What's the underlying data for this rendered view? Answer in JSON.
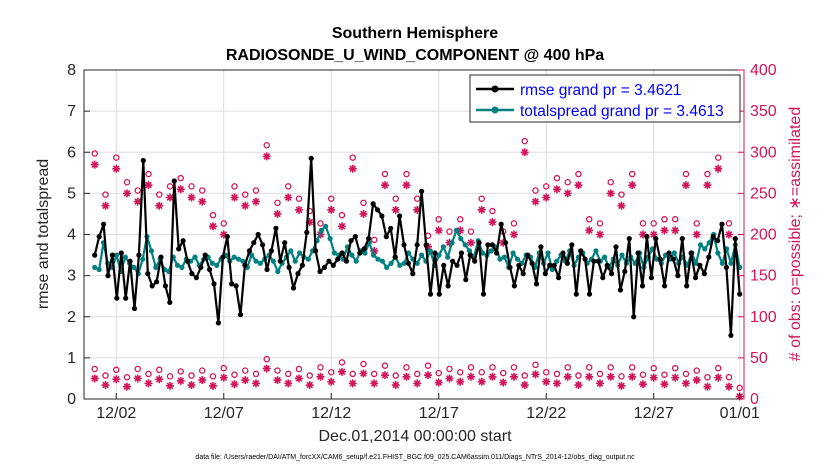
{
  "chart_data": {
    "type": "line",
    "title": "Southern Hemisphere",
    "subtitle": "RADIOSONDE_U_WIND_COMPONENT @ 400 hPa",
    "xlabel": "Dec.01,2014 00:00:00 start",
    "ylabel_left": "rmse and totalspread",
    "ylabel_right": "# of obs: o=possible; ∗=assimilated",
    "footnote": "data file: /Users/raeder/DAI/ATM_forcXX/CAM6_setup/f.e21.FHIST_BGC.f09_025.CAM6assim.011/Diags_NTrS_2014-12/obs_diag_output.nc",
    "xlim": [
      0.5,
      31.2
    ],
    "ylim_left": [
      0,
      8
    ],
    "ylim_right": [
      0,
      400
    ],
    "x_ticks": [
      {
        "value": 2,
        "label": "12/02"
      },
      {
        "value": 7,
        "label": "12/07"
      },
      {
        "value": 12,
        "label": "12/12"
      },
      {
        "value": 17,
        "label": "12/17"
      },
      {
        "value": 22,
        "label": "12/22"
      },
      {
        "value": 27,
        "label": "12/27"
      },
      {
        "value": 31,
        "label": "01/01"
      }
    ],
    "y_ticks_left": [
      "0",
      "1",
      "2",
      "3",
      "4",
      "5",
      "6",
      "7",
      "8"
    ],
    "y_ticks_right": [
      "0",
      "50",
      "100",
      "150",
      "200",
      "250",
      "300",
      "350",
      "400"
    ],
    "grid": true,
    "legend_position": "top-right",
    "legend": [
      "rmse grand pr = 3.4621",
      "totalspread grand pr = 3.4613"
    ],
    "series": [
      {
        "name": "rmse",
        "axis": "left",
        "values": [
          3.5,
          3.95,
          4.25,
          3.0,
          3.5,
          2.45,
          3.55,
          2.45,
          3.35,
          2.2,
          3.5,
          5.8,
          3.05,
          2.75,
          2.85,
          3.45,
          2.75,
          2.35,
          5.3,
          3.65,
          3.85,
          3.35,
          3.05,
          2.95,
          3.2,
          3.5,
          3.15,
          2.8,
          1.85,
          3.45,
          3.95,
          2.8,
          2.75,
          2.05,
          3.25,
          3.6,
          3.8,
          4.0,
          3.75,
          3.15,
          3.6,
          4.15,
          3.35,
          3.8,
          3.2,
          2.7,
          3.05,
          3.25,
          4.05,
          5.85,
          3.6,
          3.1,
          3.2,
          3.35,
          3.25,
          3.4,
          3.55,
          3.35,
          3.85,
          3.95,
          3.55,
          3.65,
          3.9,
          4.75,
          4.6,
          4.45,
          3.95,
          4.15,
          3.45,
          4.45,
          3.75,
          3.3,
          3.05,
          3.75,
          5.05,
          3.75,
          2.55,
          3.55,
          2.55,
          3.25,
          2.75,
          3.35,
          3.25,
          3.55,
          2.9,
          3.5,
          3.35,
          3.8,
          2.55,
          3.75,
          3.75,
          3.55,
          4.25,
          3.8,
          3.2,
          2.75,
          3.25,
          3.05,
          3.5,
          3.3,
          2.8,
          3.7,
          3.05,
          3.25,
          3.25,
          2.95,
          3.55,
          3.3,
          3.75,
          2.55,
          3.6,
          3.4,
          2.55,
          3.35,
          3.35,
          2.95,
          3.25,
          3.05,
          3.7,
          2.65,
          3.1,
          3.9,
          2.0,
          3.55,
          2.75,
          3.95,
          2.95,
          3.9,
          3.4,
          2.75,
          3.55,
          3.4,
          3.0,
          3.9,
          2.75,
          3.55,
          2.95,
          3.25,
          3.05,
          3.45,
          3.95,
          3.85,
          4.25,
          3.2,
          1.55,
          3.9,
          2.55
        ]
      },
      {
        "name": "totalspread",
        "axis": "left",
        "values": [
          3.2,
          3.15,
          3.8,
          3.3,
          3.2,
          3.5,
          3.1,
          3.45,
          3.3,
          3.2,
          3.05,
          3.4,
          3.95,
          3.6,
          3.2,
          3.4,
          3.15,
          3.1,
          3.45,
          3.25,
          3.2,
          3.4,
          3.35,
          3.45,
          3.25,
          3.4,
          3.45,
          3.3,
          3.25,
          3.4,
          3.5,
          3.35,
          3.45,
          3.4,
          3.35,
          3.2,
          3.5,
          3.35,
          3.3,
          3.4,
          3.5,
          3.35,
          3.1,
          3.3,
          3.45,
          3.6,
          3.35,
          3.55,
          3.45,
          3.4,
          3.6,
          3.85,
          4.1,
          4.2,
          3.9,
          3.55,
          3.5,
          3.4,
          3.7,
          3.5,
          3.35,
          3.6,
          3.55,
          3.8,
          3.5,
          3.4,
          3.35,
          3.2,
          3.3,
          3.45,
          3.25,
          3.3,
          3.55,
          3.4,
          3.3,
          3.5,
          3.35,
          3.6,
          3.25,
          3.5,
          3.7,
          3.45,
          3.8,
          4.1,
          3.9,
          3.75,
          3.6,
          3.45,
          3.85,
          3.55,
          3.5,
          3.6,
          3.7,
          3.4,
          3.45,
          3.2,
          3.55,
          3.4,
          3.3,
          3.5,
          3.45,
          3.2,
          3.55,
          3.3,
          3.55,
          3.15,
          3.35,
          3.5,
          3.35,
          3.6,
          3.25,
          3.45,
          3.55,
          3.3,
          3.4,
          3.6,
          3.35,
          3.45,
          3.2,
          3.4,
          3.25,
          3.5,
          3.3,
          3.45,
          3.3,
          3.55,
          3.2,
          3.45,
          3.65,
          3.4,
          3.3,
          3.5,
          3.4,
          3.55,
          3.3,
          3.45,
          3.25,
          3.55,
          3.3,
          3.75,
          3.65,
          3.8,
          4.0,
          3.55,
          3.3,
          3.65,
          3.3,
          3.75,
          3.2
        ]
      }
    ],
    "obs_possible": [
      {
        "x": 1.0,
        "v": 290
      },
      {
        "x": 1.0,
        "v": 28
      },
      {
        "x": 1.5,
        "v": 240
      },
      {
        "x": 1.5,
        "v": 20
      },
      {
        "x": 2.0,
        "v": 285
      },
      {
        "x": 2.0,
        "v": 27
      },
      {
        "x": 2.5,
        "v": 255
      },
      {
        "x": 2.5,
        "v": 18
      },
      {
        "x": 3.0,
        "v": 245
      },
      {
        "x": 3.0,
        "v": 28
      },
      {
        "x": 3.5,
        "v": 265
      },
      {
        "x": 3.5,
        "v": 22
      },
      {
        "x": 4.0,
        "v": 240
      },
      {
        "x": 4.0,
        "v": 27
      },
      {
        "x": 4.5,
        "v": 250
      },
      {
        "x": 4.5,
        "v": 19
      },
      {
        "x": 5.0,
        "v": 260
      },
      {
        "x": 5.0,
        "v": 25
      },
      {
        "x": 5.5,
        "v": 250
      },
      {
        "x": 5.5,
        "v": 20
      },
      {
        "x": 6.0,
        "v": 245
      },
      {
        "x": 6.0,
        "v": 26
      },
      {
        "x": 6.5,
        "v": 215
      },
      {
        "x": 6.5,
        "v": 19
      },
      {
        "x": 7.0,
        "v": 205
      },
      {
        "x": 7.0,
        "v": 29
      },
      {
        "x": 7.5,
        "v": 250
      },
      {
        "x": 7.5,
        "v": 21
      },
      {
        "x": 8.0,
        "v": 240
      },
      {
        "x": 8.0,
        "v": 26
      },
      {
        "x": 8.5,
        "v": 245
      },
      {
        "x": 8.5,
        "v": 22
      },
      {
        "x": 9.0,
        "v": 300
      },
      {
        "x": 9.0,
        "v": 40
      },
      {
        "x": 9.5,
        "v": 230
      },
      {
        "x": 9.5,
        "v": 26
      },
      {
        "x": 10.0,
        "v": 250
      },
      {
        "x": 10.0,
        "v": 22
      },
      {
        "x": 10.5,
        "v": 235
      },
      {
        "x": 10.5,
        "v": 28
      },
      {
        "x": 11.0,
        "v": 220
      },
      {
        "x": 11.0,
        "v": 20
      },
      {
        "x": 11.5,
        "v": 205
      },
      {
        "x": 11.5,
        "v": 30
      },
      {
        "x": 12.0,
        "v": 235
      },
      {
        "x": 12.0,
        "v": 24
      },
      {
        "x": 12.5,
        "v": 215
      },
      {
        "x": 12.5,
        "v": 36
      },
      {
        "x": 13.0,
        "v": 285
      },
      {
        "x": 13.0,
        "v": 22
      },
      {
        "x": 13.5,
        "v": 230
      },
      {
        "x": 13.5,
        "v": 34
      },
      {
        "x": 14.0,
        "v": 185
      },
      {
        "x": 14.0,
        "v": 22
      },
      {
        "x": 14.5,
        "v": 265
      },
      {
        "x": 14.5,
        "v": 32
      },
      {
        "x": 15.0,
        "v": 235
      },
      {
        "x": 15.0,
        "v": 20
      },
      {
        "x": 15.5,
        "v": 265
      },
      {
        "x": 15.5,
        "v": 30
      },
      {
        "x": 16.0,
        "v": 235
      },
      {
        "x": 16.0,
        "v": 22
      },
      {
        "x": 16.5,
        "v": 190
      },
      {
        "x": 16.5,
        "v": 32
      },
      {
        "x": 17.0,
        "v": 210
      },
      {
        "x": 17.0,
        "v": 23
      },
      {
        "x": 17.5,
        "v": 195
      },
      {
        "x": 17.5,
        "v": 28
      },
      {
        "x": 18.0,
        "v": 210
      },
      {
        "x": 18.0,
        "v": 24
      },
      {
        "x": 18.5,
        "v": 195
      },
      {
        "x": 18.5,
        "v": 30
      },
      {
        "x": 19.0,
        "v": 235
      },
      {
        "x": 19.0,
        "v": 24
      },
      {
        "x": 19.5,
        "v": 220
      },
      {
        "x": 19.5,
        "v": 30
      },
      {
        "x": 20.0,
        "v": 195
      },
      {
        "x": 20.0,
        "v": 23
      },
      {
        "x": 20.5,
        "v": 205
      },
      {
        "x": 20.5,
        "v": 30
      },
      {
        "x": 21.0,
        "v": 305
      },
      {
        "x": 21.0,
        "v": 20
      },
      {
        "x": 21.5,
        "v": 245
      },
      {
        "x": 21.5,
        "v": 33
      },
      {
        "x": 22.0,
        "v": 250
      },
      {
        "x": 22.0,
        "v": 24
      },
      {
        "x": 22.5,
        "v": 260
      },
      {
        "x": 22.5,
        "v": 22
      },
      {
        "x": 23.0,
        "v": 255
      },
      {
        "x": 23.0,
        "v": 30
      },
      {
        "x": 23.5,
        "v": 265
      },
      {
        "x": 23.5,
        "v": 20
      },
      {
        "x": 24.0,
        "v": 210
      },
      {
        "x": 24.0,
        "v": 30
      },
      {
        "x": 24.5,
        "v": 205
      },
      {
        "x": 24.5,
        "v": 22
      },
      {
        "x": 25.0,
        "v": 255
      },
      {
        "x": 25.0,
        "v": 30
      },
      {
        "x": 25.5,
        "v": 240
      },
      {
        "x": 25.5,
        "v": 19
      },
      {
        "x": 26.0,
        "v": 265
      },
      {
        "x": 26.0,
        "v": 30
      },
      {
        "x": 26.5,
        "v": 205
      },
      {
        "x": 26.5,
        "v": 21
      },
      {
        "x": 27.0,
        "v": 205
      },
      {
        "x": 27.0,
        "v": 29
      },
      {
        "x": 27.5,
        "v": 210
      },
      {
        "x": 27.5,
        "v": 21
      },
      {
        "x": 28.0,
        "v": 210
      },
      {
        "x": 28.0,
        "v": 29
      },
      {
        "x": 28.5,
        "v": 265
      },
      {
        "x": 28.5,
        "v": 22
      },
      {
        "x": 29.0,
        "v": 205
      },
      {
        "x": 29.0,
        "v": 26
      },
      {
        "x": 29.5,
        "v": 265
      },
      {
        "x": 29.5,
        "v": 18
      },
      {
        "x": 30.0,
        "v": 285
      },
      {
        "x": 30.0,
        "v": 29
      },
      {
        "x": 30.5,
        "v": 205
      },
      {
        "x": 30.5,
        "v": 18
      },
      {
        "x": 31.0,
        "v": 5
      }
    ],
    "obs_assimilated": [
      {
        "x": 1.0,
        "v": 285
      },
      {
        "x": 1.0,
        "v": 25
      },
      {
        "x": 1.5,
        "v": 235
      },
      {
        "x": 1.5,
        "v": 17
      },
      {
        "x": 2.0,
        "v": 280
      },
      {
        "x": 2.0,
        "v": 24
      },
      {
        "x": 2.5,
        "v": 250
      },
      {
        "x": 2.5,
        "v": 15
      },
      {
        "x": 3.0,
        "v": 240
      },
      {
        "x": 3.0,
        "v": 25
      },
      {
        "x": 3.5,
        "v": 260
      },
      {
        "x": 3.5,
        "v": 19
      },
      {
        "x": 4.0,
        "v": 235
      },
      {
        "x": 4.0,
        "v": 24
      },
      {
        "x": 4.5,
        "v": 245
      },
      {
        "x": 4.5,
        "v": 16
      },
      {
        "x": 5.0,
        "v": 255
      },
      {
        "x": 5.0,
        "v": 22
      },
      {
        "x": 5.5,
        "v": 245
      },
      {
        "x": 5.5,
        "v": 17
      },
      {
        "x": 6.0,
        "v": 240
      },
      {
        "x": 6.0,
        "v": 23
      },
      {
        "x": 6.5,
        "v": 210
      },
      {
        "x": 6.5,
        "v": 16
      },
      {
        "x": 7.0,
        "v": 200
      },
      {
        "x": 7.0,
        "v": 26
      },
      {
        "x": 7.5,
        "v": 245
      },
      {
        "x": 7.5,
        "v": 18
      },
      {
        "x": 8.0,
        "v": 235
      },
      {
        "x": 8.0,
        "v": 23
      },
      {
        "x": 8.5,
        "v": 240
      },
      {
        "x": 8.5,
        "v": 19
      },
      {
        "x": 9.0,
        "v": 295
      },
      {
        "x": 9.0,
        "v": 37
      },
      {
        "x": 9.5,
        "v": 225
      },
      {
        "x": 9.5,
        "v": 23
      },
      {
        "x": 10.0,
        "v": 245
      },
      {
        "x": 10.0,
        "v": 19
      },
      {
        "x": 10.5,
        "v": 230
      },
      {
        "x": 10.5,
        "v": 25
      },
      {
        "x": 11.0,
        "v": 215
      },
      {
        "x": 11.0,
        "v": 17
      },
      {
        "x": 11.5,
        "v": 200
      },
      {
        "x": 11.5,
        "v": 27
      },
      {
        "x": 12.0,
        "v": 230
      },
      {
        "x": 12.0,
        "v": 21
      },
      {
        "x": 12.5,
        "v": 210
      },
      {
        "x": 12.5,
        "v": 33
      },
      {
        "x": 13.0,
        "v": 280
      },
      {
        "x": 13.0,
        "v": 19
      },
      {
        "x": 13.5,
        "v": 225
      },
      {
        "x": 13.5,
        "v": 31
      },
      {
        "x": 14.0,
        "v": 180
      },
      {
        "x": 14.0,
        "v": 19
      },
      {
        "x": 14.5,
        "v": 260
      },
      {
        "x": 14.5,
        "v": 29
      },
      {
        "x": 15.0,
        "v": 230
      },
      {
        "x": 15.0,
        "v": 17
      },
      {
        "x": 15.5,
        "v": 260
      },
      {
        "x": 15.5,
        "v": 27
      },
      {
        "x": 16.0,
        "v": 230
      },
      {
        "x": 16.0,
        "v": 19
      },
      {
        "x": 16.5,
        "v": 185
      },
      {
        "x": 16.5,
        "v": 29
      },
      {
        "x": 17.0,
        "v": 205
      },
      {
        "x": 17.0,
        "v": 20
      },
      {
        "x": 17.5,
        "v": 190
      },
      {
        "x": 17.5,
        "v": 25
      },
      {
        "x": 18.0,
        "v": 205
      },
      {
        "x": 18.0,
        "v": 21
      },
      {
        "x": 18.5,
        "v": 190
      },
      {
        "x": 18.5,
        "v": 27
      },
      {
        "x": 19.0,
        "v": 230
      },
      {
        "x": 19.0,
        "v": 21
      },
      {
        "x": 19.5,
        "v": 215
      },
      {
        "x": 19.5,
        "v": 27
      },
      {
        "x": 20.0,
        "v": 190
      },
      {
        "x": 20.0,
        "v": 20
      },
      {
        "x": 20.5,
        "v": 200
      },
      {
        "x": 20.5,
        "v": 27
      },
      {
        "x": 21.0,
        "v": 300
      },
      {
        "x": 21.0,
        "v": 17
      },
      {
        "x": 21.5,
        "v": 240
      },
      {
        "x": 21.5,
        "v": 30
      },
      {
        "x": 22.0,
        "v": 245
      },
      {
        "x": 22.0,
        "v": 21
      },
      {
        "x": 22.5,
        "v": 255
      },
      {
        "x": 22.5,
        "v": 19
      },
      {
        "x": 23.0,
        "v": 250
      },
      {
        "x": 23.0,
        "v": 27
      },
      {
        "x": 23.5,
        "v": 260
      },
      {
        "x": 23.5,
        "v": 17
      },
      {
        "x": 24.0,
        "v": 205
      },
      {
        "x": 24.0,
        "v": 27
      },
      {
        "x": 24.5,
        "v": 200
      },
      {
        "x": 24.5,
        "v": 19
      },
      {
        "x": 25.0,
        "v": 250
      },
      {
        "x": 25.0,
        "v": 27
      },
      {
        "x": 25.5,
        "v": 235
      },
      {
        "x": 25.5,
        "v": 16
      },
      {
        "x": 26.0,
        "v": 260
      },
      {
        "x": 26.0,
        "v": 27
      },
      {
        "x": 26.5,
        "v": 200
      },
      {
        "x": 26.5,
        "v": 18
      },
      {
        "x": 27.0,
        "v": 200
      },
      {
        "x": 27.0,
        "v": 26
      },
      {
        "x": 27.5,
        "v": 205
      },
      {
        "x": 27.5,
        "v": 18
      },
      {
        "x": 28.0,
        "v": 205
      },
      {
        "x": 28.0,
        "v": 26
      },
      {
        "x": 28.5,
        "v": 260
      },
      {
        "x": 28.5,
        "v": 19
      },
      {
        "x": 29.0,
        "v": 200
      },
      {
        "x": 29.0,
        "v": 23
      },
      {
        "x": 29.5,
        "v": 260
      },
      {
        "x": 29.5,
        "v": 15
      },
      {
        "x": 30.0,
        "v": 280
      },
      {
        "x": 30.0,
        "v": 26
      },
      {
        "x": 30.5,
        "v": 200
      },
      {
        "x": 30.5,
        "v": 15
      },
      {
        "x": 31.0,
        "v": 3
      }
    ]
  },
  "colors": {
    "rmse": "#000000",
    "totalspread": "#008080",
    "obs": "#d0155a",
    "legend_text": "#0000ff",
    "grid": "#dddddd",
    "axis": "#262626"
  }
}
